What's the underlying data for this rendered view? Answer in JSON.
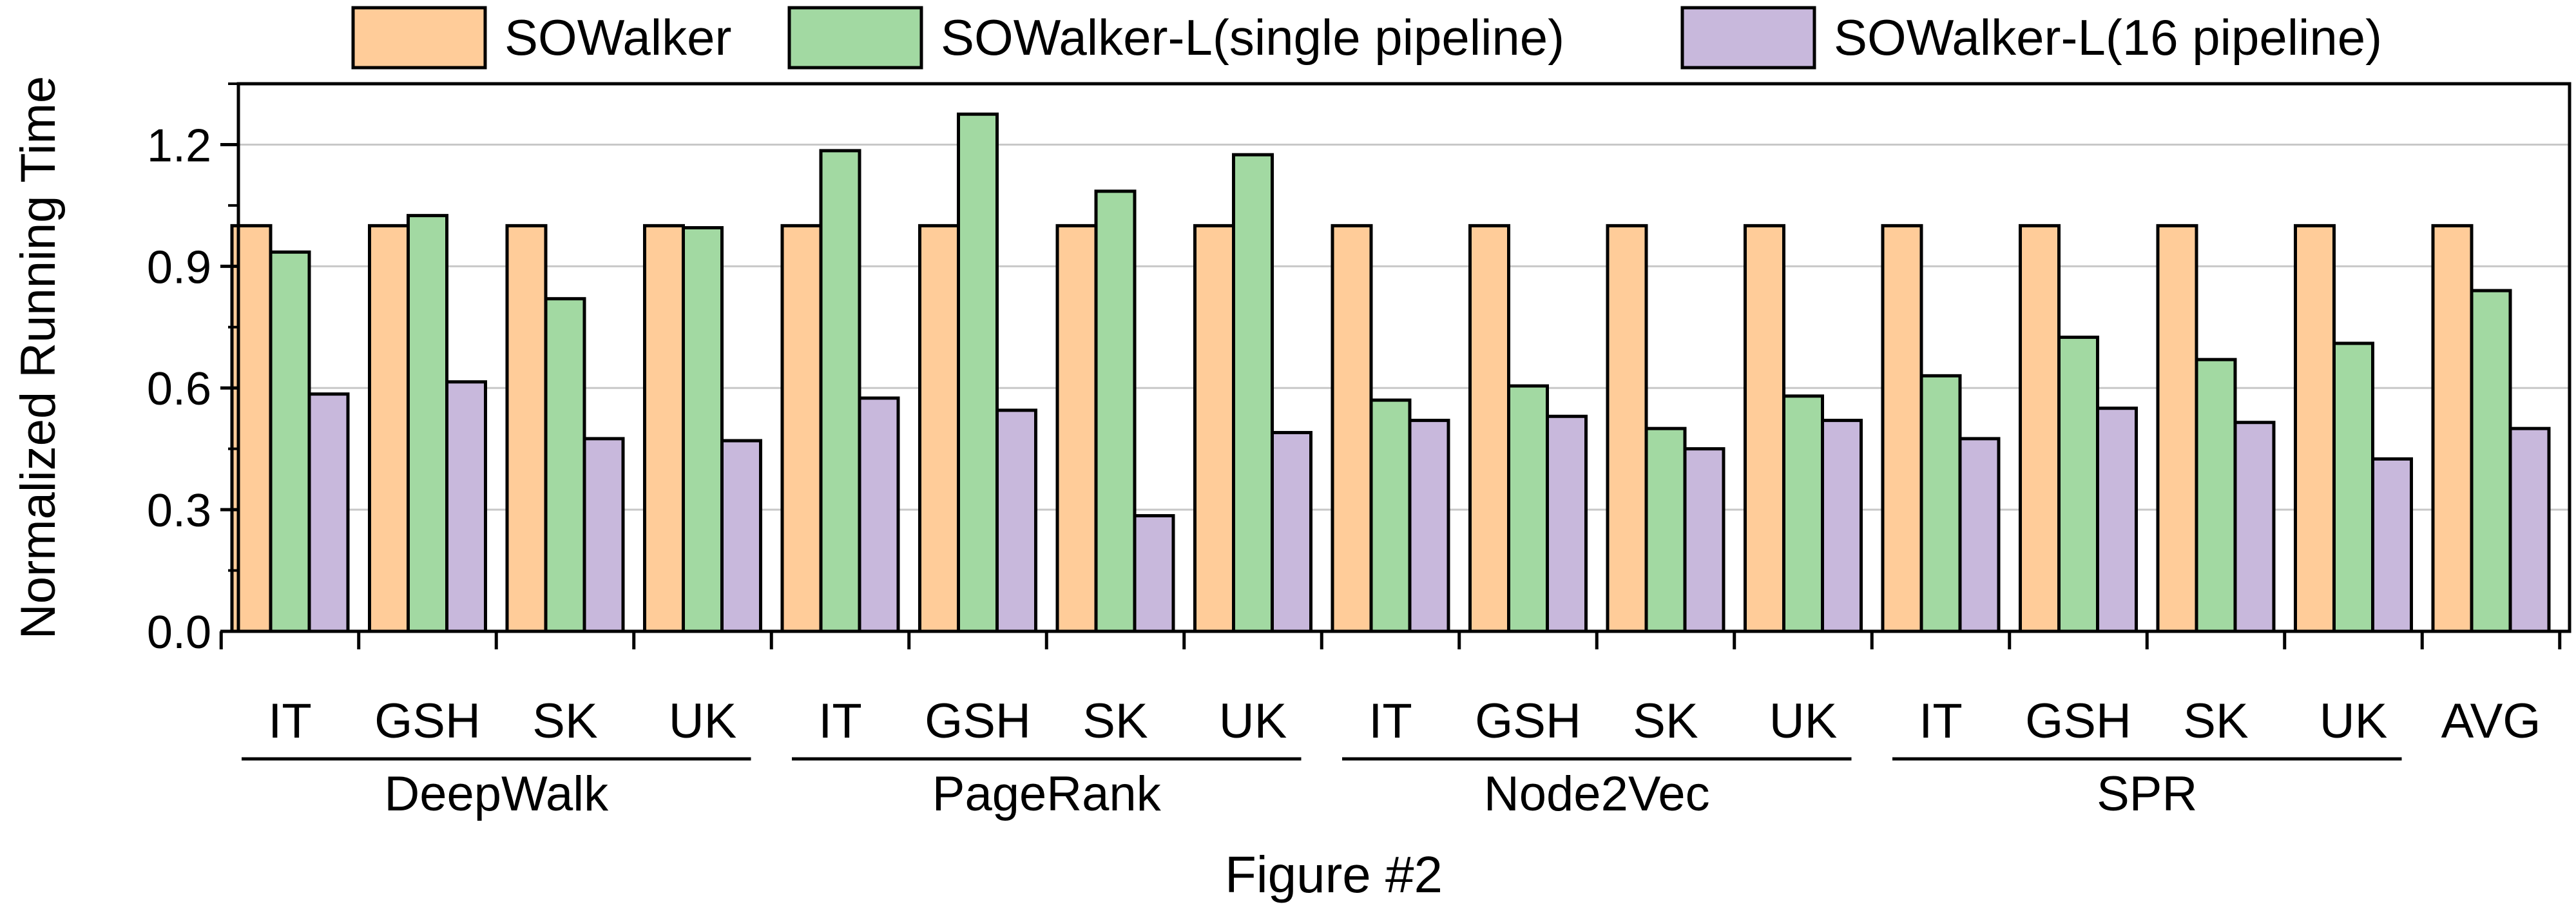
{
  "chart_data": {
    "type": "bar",
    "title": "",
    "xlabel": "Figure #2",
    "ylabel": "Normalized Running Time",
    "ylim": [
      0,
      1.35
    ],
    "yticks": [
      "0.0",
      "0.3",
      "0.6",
      "0.9",
      "1.2"
    ],
    "ytick_values": [
      0,
      0.3,
      0.6,
      0.9,
      1.2
    ],
    "grid": "horizontal",
    "legend_position": "top",
    "categories": [
      "IT",
      "GSH",
      "SK",
      "UK",
      "IT",
      "GSH",
      "SK",
      "UK",
      "IT",
      "GSH",
      "SK",
      "UK",
      "IT",
      "GSH",
      "SK",
      "UK",
      "AVG"
    ],
    "groups": [
      {
        "label": "DeepWalk",
        "start": 0,
        "end": 3
      },
      {
        "label": "PageRank",
        "start": 4,
        "end": 7
      },
      {
        "label": "Node2Vec",
        "start": 8,
        "end": 11
      },
      {
        "label": "SPR",
        "start": 12,
        "end": 15
      }
    ],
    "series": [
      {
        "name": "SOWalker",
        "color": "#FFCC99",
        "values": [
          1.0,
          1.0,
          1.0,
          1.0,
          1.0,
          1.0,
          1.0,
          1.0,
          1.0,
          1.0,
          1.0,
          1.0,
          1.0,
          1.0,
          1.0,
          1.0,
          1.0
        ]
      },
      {
        "name": "SOWalker-L(single pipeline)",
        "color": "#A2D9A2",
        "values": [
          0.935,
          1.025,
          0.82,
          0.995,
          1.185,
          1.275,
          1.085,
          1.175,
          0.57,
          0.605,
          0.5,
          0.58,
          0.63,
          0.725,
          0.67,
          0.71,
          0.84
        ]
      },
      {
        "name": "SOWalker-L(16 pipeline)",
        "color": "#C8B8DC",
        "values": [
          0.585,
          0.615,
          0.475,
          0.47,
          0.575,
          0.545,
          0.285,
          0.49,
          0.52,
          0.53,
          0.45,
          0.52,
          0.475,
          0.55,
          0.515,
          0.425,
          0.5
        ]
      }
    ]
  }
}
